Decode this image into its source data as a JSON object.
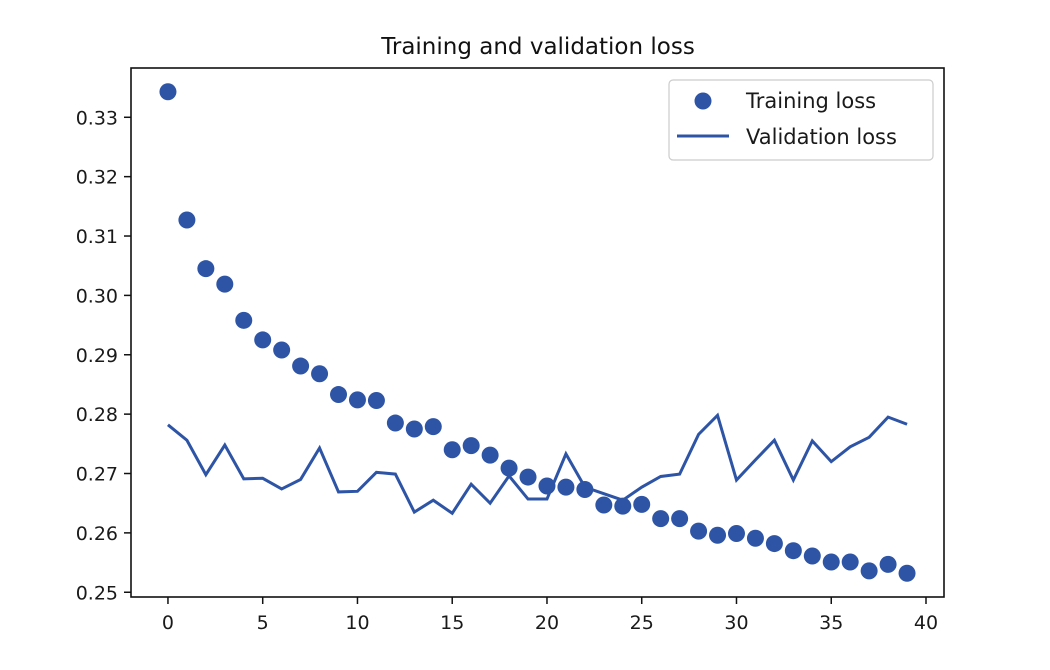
{
  "chart_data": {
    "type": "line",
    "title": "Training and validation loss",
    "xlabel": "",
    "ylabel": "",
    "xlim": [
      -1.95,
      40.95
    ],
    "ylim": [
      0.2492,
      0.3383
    ],
    "x_ticks": [
      0,
      5,
      10,
      15,
      20,
      25,
      30,
      35,
      40
    ],
    "x_tick_labels": [
      "0",
      "5",
      "10",
      "15",
      "20",
      "25",
      "30",
      "35",
      "40"
    ],
    "y_ticks": [
      0.25,
      0.26,
      0.27,
      0.28,
      0.29,
      0.3,
      0.31,
      0.32,
      0.33
    ],
    "y_tick_labels": [
      "0.25",
      "0.26",
      "0.27",
      "0.28",
      "0.29",
      "0.30",
      "0.31",
      "0.32",
      "0.33"
    ],
    "grid": false,
    "legend_position": "top-right",
    "x": [
      0,
      1,
      2,
      3,
      4,
      5,
      6,
      7,
      8,
      9,
      10,
      11,
      12,
      13,
      14,
      15,
      16,
      17,
      18,
      19,
      20,
      21,
      22,
      23,
      24,
      25,
      26,
      27,
      28,
      29,
      30,
      31,
      32,
      33,
      34,
      35,
      36,
      37,
      38,
      39
    ],
    "series": [
      {
        "name": "Training loss",
        "style": "markers",
        "color": "#2e54a6",
        "values": [
          0.3343,
          0.3127,
          0.3045,
          0.3019,
          0.2958,
          0.2925,
          0.2908,
          0.2881,
          0.2868,
          0.2833,
          0.2824,
          0.2823,
          0.2785,
          0.2775,
          0.2779,
          0.274,
          0.2747,
          0.2731,
          0.2709,
          0.2694,
          0.2679,
          0.2677,
          0.2673,
          0.2647,
          0.2645,
          0.2648,
          0.2624,
          0.2624,
          0.2603,
          0.2596,
          0.2599,
          0.2591,
          0.2582,
          0.257,
          0.2561,
          0.2551,
          0.2551,
          0.2536,
          0.2547,
          0.2532
        ]
      },
      {
        "name": "Validation loss",
        "style": "line",
        "color": "#2e54a6",
        "values": [
          0.2782,
          0.2756,
          0.2698,
          0.2748,
          0.2691,
          0.2692,
          0.2674,
          0.269,
          0.2743,
          0.2669,
          0.267,
          0.2702,
          0.2699,
          0.2635,
          0.2655,
          0.2633,
          0.2682,
          0.265,
          0.2696,
          0.2657,
          0.2657,
          0.2733,
          0.2677,
          0.2666,
          0.2655,
          0.2677,
          0.2695,
          0.2699,
          0.2766,
          0.2798,
          0.2689,
          0.2723,
          0.2756,
          0.2689,
          0.2755,
          0.272,
          0.2745,
          0.2761,
          0.2795,
          0.2783
        ]
      }
    ]
  }
}
